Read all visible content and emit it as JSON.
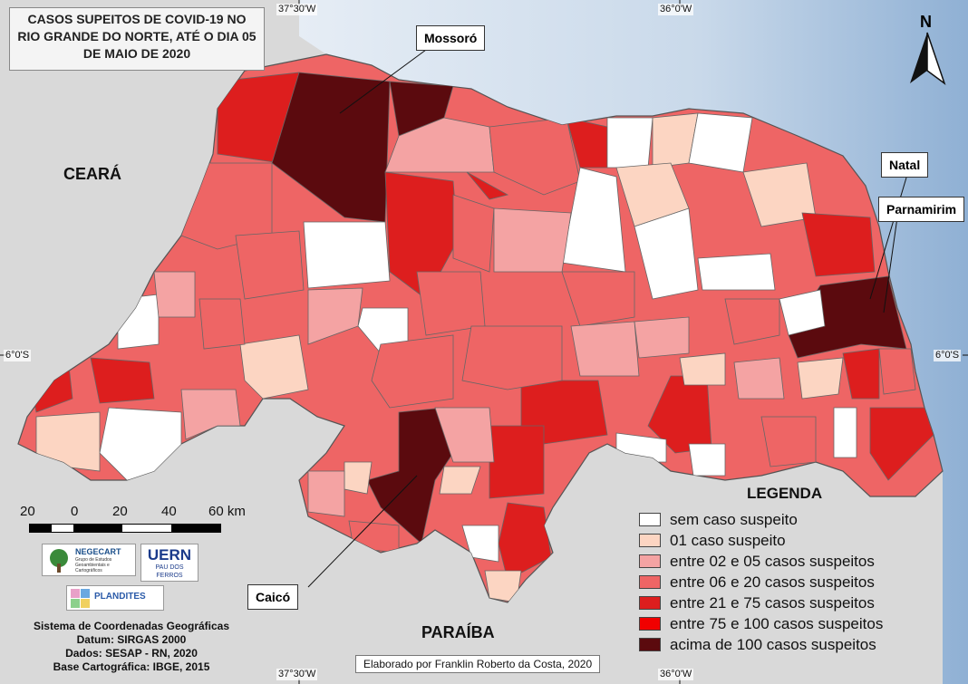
{
  "title_lines": [
    "CASOS SUPEITOS DE COVID-19 NO",
    "RIO GRANDE DO NORTE, ATÉ O DIA 05",
    "DE MAIO DE 2020"
  ],
  "graticule": {
    "lon_left": "37°30'W",
    "lon_right": "36°0'W",
    "lat": "6°0'S"
  },
  "regions": {
    "north_west": "CEARÁ",
    "south": "PARAÍBA"
  },
  "cities": {
    "mossoro": "Mossoró",
    "natal": "Natal",
    "parnamirim": "Parnamirim",
    "caico": "Caicó"
  },
  "north_arrow": {
    "label": "N"
  },
  "scale_bar": {
    "labels": [
      "20",
      "0",
      "20",
      "40",
      "60 km"
    ]
  },
  "legend": {
    "title": "LEGENDA",
    "items": [
      {
        "label": "sem caso suspeito",
        "color": "#ffffff"
      },
      {
        "label": "01 caso suspeito",
        "color": "#fcd5c2"
      },
      {
        "label": "entre 02 e 05 casos suspeitos",
        "color": "#f4a3a3"
      },
      {
        "label": "entre 06 e 20 casos suspeitos",
        "color": "#ee6565"
      },
      {
        "label": "entre 21 e 75 casos suspeitos",
        "color": "#dd1e1e"
      },
      {
        "label": "entre 75 e 100 casos suspeitos",
        "color": "#f10000"
      },
      {
        "label": "acima de 100 casos suspeitos",
        "color": "#5b0a0e"
      }
    ]
  },
  "logos": {
    "negecart_name": "NEGECART",
    "negecart_sub": "Grupo de Estudos Geoambientais e Cartográficos",
    "uern_name": "UERN",
    "uern_sub": "PAU DOS FERROS",
    "plandites_name": "PLANDITES"
  },
  "metadata_lines": [
    "Sistema de Coordenadas Geográficas",
    "Datum: SIRGAS 2000",
    "Dados: SESAP - RN, 2020",
    "Base Cartográfica: IBGE, 2015"
  ],
  "credit": "Elaborado por Franklin Roberto da Costa, 2020",
  "colors": {
    "land_outside": "#d9d9d9",
    "ocean": "#c7d6e6",
    "border": "#555555"
  }
}
